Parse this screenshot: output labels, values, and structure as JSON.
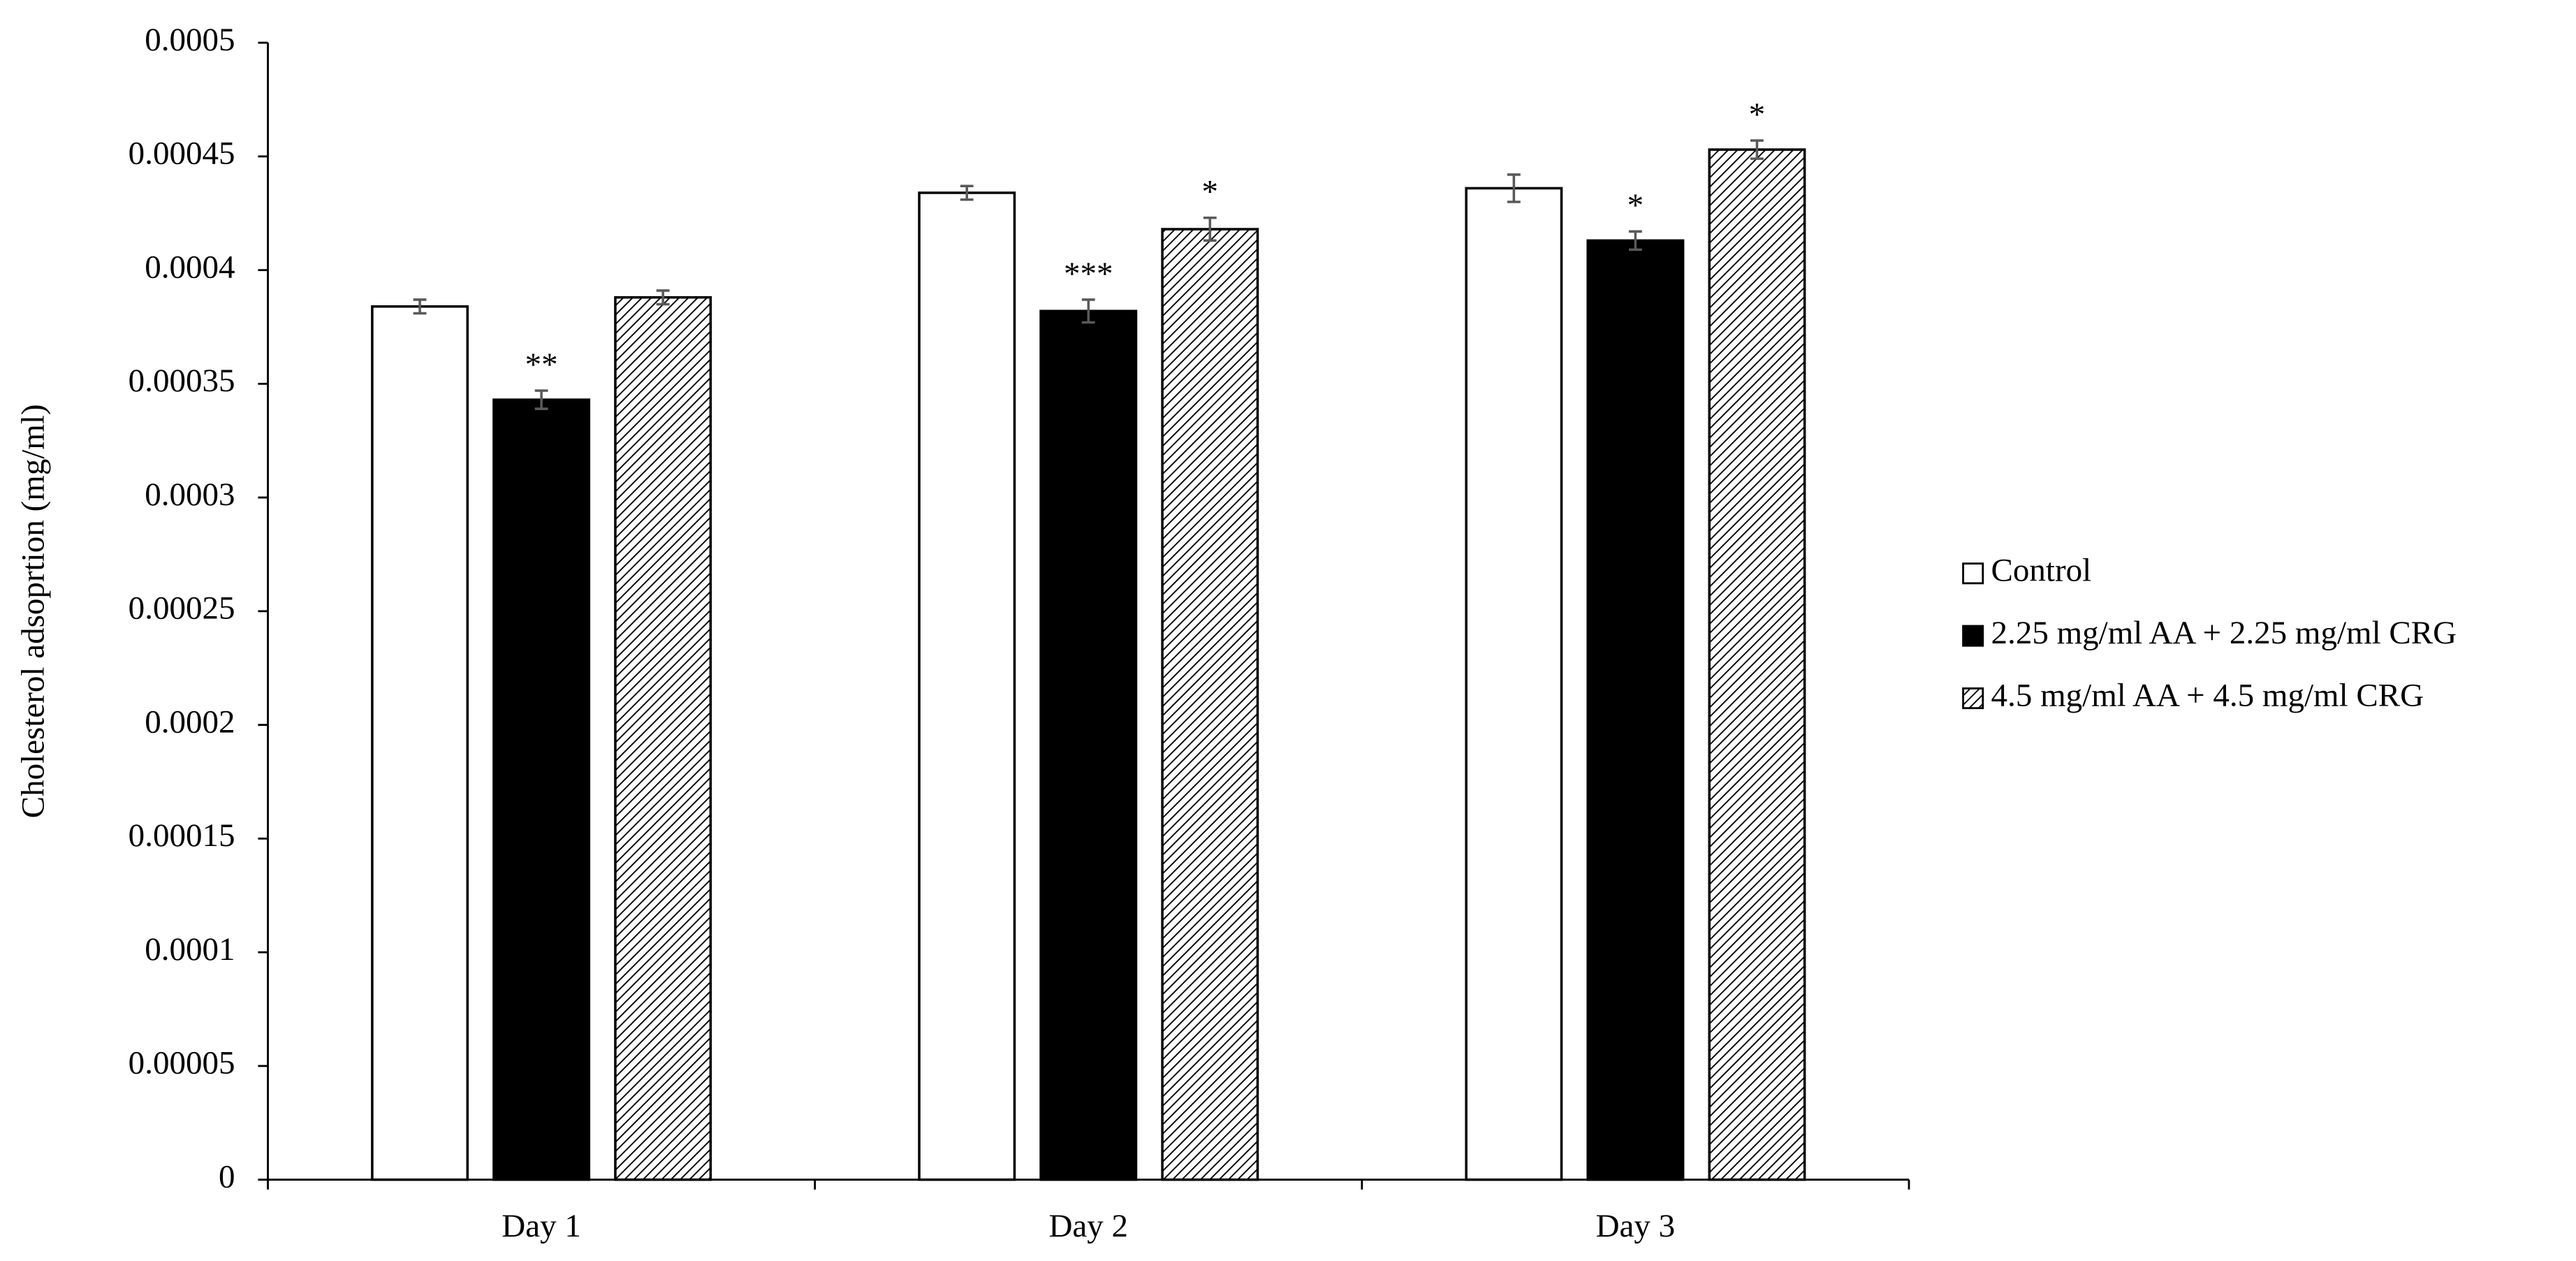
{
  "chart_data": {
    "type": "bar",
    "y_label": "Cholesterol adsoprtion (mg/ml)",
    "categories": [
      "Day 1",
      "Day 2",
      "Day 3"
    ],
    "series": [
      {
        "name": "Control",
        "color": "#ffffff",
        "values": [
          0.000384,
          0.000434,
          0.000436
        ],
        "errors": [
          3e-06,
          3e-06,
          6e-06
        ],
        "annotations": [
          null,
          null,
          null
        ]
      },
      {
        "name": "2.25 mg/ml AA + 2.25 mg/ml CRG",
        "color": "#000000",
        "values": [
          0.000343,
          0.000382,
          0.000413
        ],
        "errors": [
          4e-06,
          5e-06,
          4e-06
        ],
        "annotations": [
          "**",
          "***",
          "*"
        ]
      },
      {
        "name": "4.5 mg/ml AA + 4.5 mg/ml CRG",
        "color": "#ffffff",
        "pattern": "diagonal",
        "values": [
          0.000388,
          0.000418,
          0.000453
        ],
        "errors": [
          3e-06,
          5e-06,
          4e-06
        ],
        "annotations": [
          null,
          "*",
          "*"
        ]
      }
    ],
    "ylim": [
      0,
      0.0005
    ],
    "yticks": [
      0,
      5e-05,
      0.0001,
      0.00015,
      0.0002,
      0.00025,
      0.0003,
      0.00035,
      0.0004,
      0.00045,
      0.0005
    ],
    "legend": "right"
  }
}
